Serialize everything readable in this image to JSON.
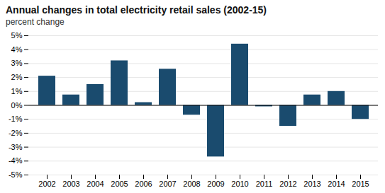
{
  "chart_data": {
    "type": "bar",
    "title": "Annual changes in total electricity retail sales (2002-15)",
    "subtitle": "percent change",
    "categories": [
      "2002",
      "2003",
      "2004",
      "2005",
      "2006",
      "2007",
      "2008",
      "2009",
      "2010",
      "2011",
      "2012",
      "2013",
      "2014",
      "2015"
    ],
    "values": [
      2.1,
      0.75,
      1.5,
      3.2,
      0.2,
      2.6,
      -0.7,
      -3.7,
      4.4,
      -0.1,
      -1.5,
      0.75,
      1.0,
      -1.0
    ],
    "color": "#1a4b6e",
    "ylim": [
      -5,
      5
    ],
    "yticks": [
      {
        "value": -5,
        "label": "-5%"
      },
      {
        "value": -4,
        "label": "-4%"
      },
      {
        "value": -3,
        "label": "-3%"
      },
      {
        "value": -2,
        "label": "-2%"
      },
      {
        "value": -1,
        "label": "-1%"
      },
      {
        "value": 0,
        "label": "0%"
      },
      {
        "value": 1,
        "label": "1%"
      },
      {
        "value": 2,
        "label": "2%"
      },
      {
        "value": 3,
        "label": "3%"
      },
      {
        "value": 4,
        "label": "4%"
      },
      {
        "value": 5,
        "label": "5%"
      }
    ],
    "grid": true
  }
}
